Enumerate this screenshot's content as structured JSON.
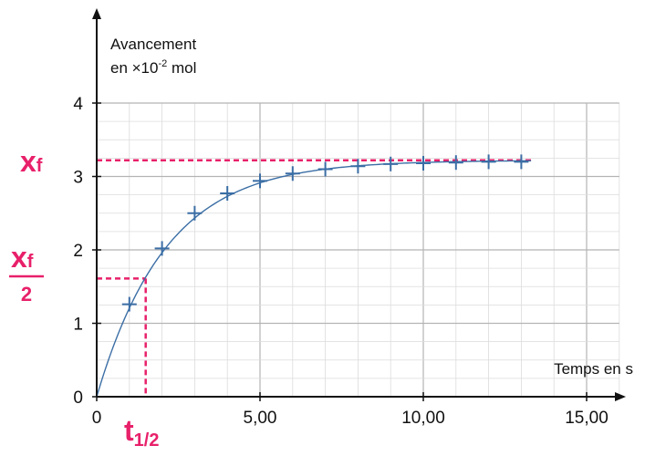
{
  "chart_data": {
    "type": "scatter",
    "ylabel_line1": "Avancement",
    "ylabel_line2_prefix": "en ×10",
    "ylabel_line2_exp": "-2",
    "ylabel_line2_suffix": " mol",
    "xlabel": "Temps en s",
    "xlim": [
      0,
      16
    ],
    "ylim": [
      0,
      4
    ],
    "x_ticks": [
      0,
      5,
      10,
      15
    ],
    "x_tick_labels": [
      "0",
      "5,00",
      "10,00",
      "15,00"
    ],
    "y_ticks": [
      0,
      1,
      2,
      3,
      4
    ],
    "y_tick_labels": [
      "0",
      "1",
      "2",
      "3",
      "4"
    ],
    "grid": true,
    "series": [
      {
        "points": [
          [
            1,
            1.26
          ],
          [
            2,
            2.02
          ],
          [
            3,
            2.5
          ],
          [
            4,
            2.77
          ],
          [
            5,
            2.94
          ],
          [
            6,
            3.04
          ],
          [
            7,
            3.1
          ],
          [
            8,
            3.14
          ],
          [
            9,
            3.17
          ],
          [
            10,
            3.18
          ],
          [
            11,
            3.19
          ],
          [
            12,
            3.2
          ],
          [
            13,
            3.2
          ]
        ]
      }
    ],
    "fit_curve": {
      "asymptote": 3.22,
      "k": 0.47
    },
    "annotations": {
      "xf_label": "x",
      "xf_sub": "f",
      "xf_value": 3.22,
      "half_label_num": "x",
      "half_label_sub": "f",
      "half_label_den": "2",
      "half_value": 1.61,
      "t_half_label": "t",
      "t_half_sub": "1/2",
      "t_half_value": 1.5
    },
    "colors": {
      "series": "#3b6ea5",
      "annotation": "#e8206a",
      "grid": "#c8c8c8",
      "axis": "#111111"
    }
  }
}
